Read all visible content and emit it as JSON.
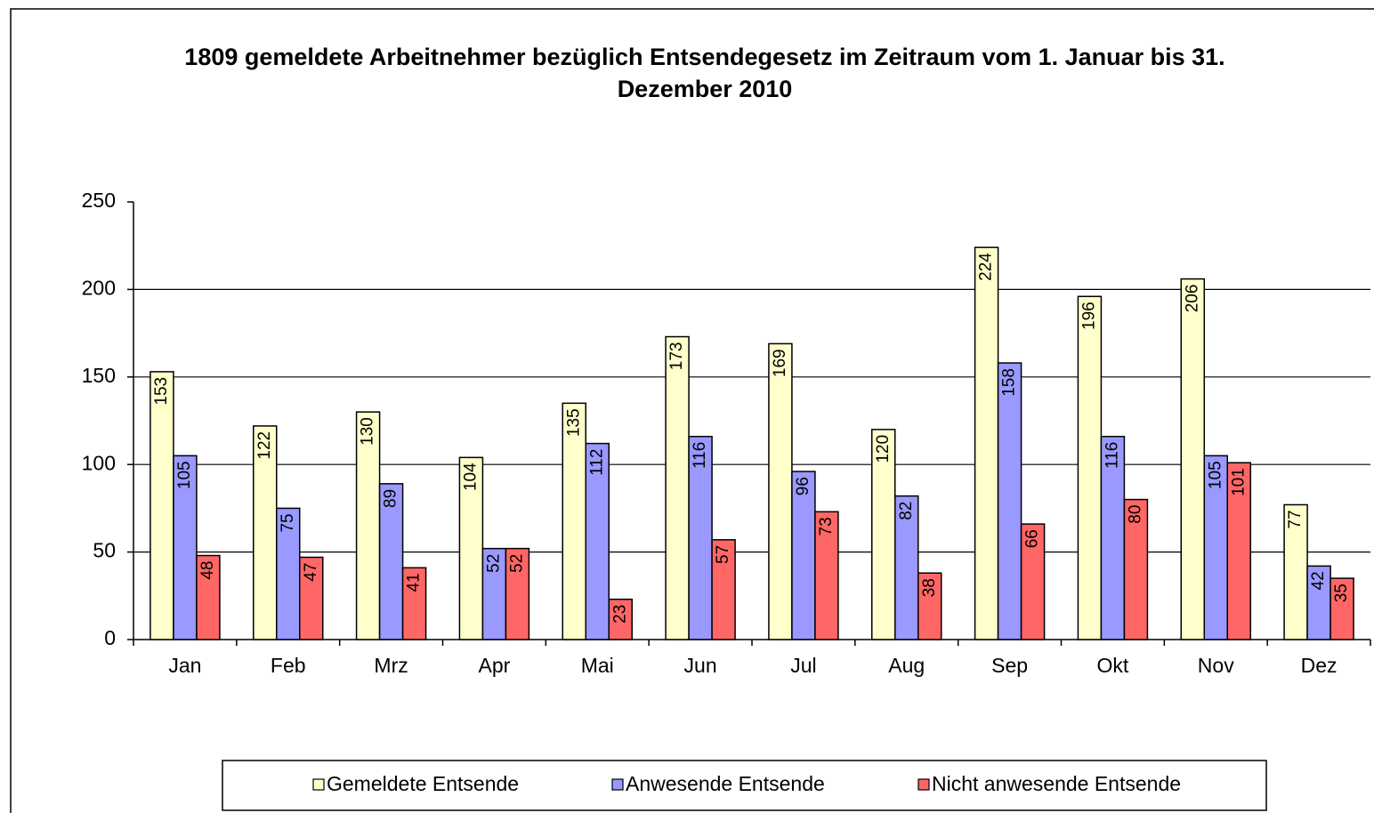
{
  "chart_data": {
    "type": "bar",
    "title": "1809 gemeldete Arbeitnehmer bezüglich Entsendegesetz im Zeitraum vom 1. Januar bis 31. Dezember 2010",
    "categories": [
      "Jan",
      "Feb",
      "Mrz",
      "Apr",
      "Mai",
      "Jun",
      "Jul",
      "Aug",
      "Sep",
      "Okt",
      "Nov",
      "Dez"
    ],
    "series": [
      {
        "name": "Gemeldete Entsende",
        "color": "#ffffcc",
        "values": [
          153,
          122,
          130,
          104,
          135,
          173,
          169,
          120,
          224,
          196,
          206,
          77
        ]
      },
      {
        "name": "Anwesende Entsende",
        "color": "#9999ff",
        "values": [
          105,
          75,
          89,
          52,
          112,
          116,
          96,
          82,
          158,
          116,
          105,
          42
        ]
      },
      {
        "name": "Nicht anwesende Entsende",
        "color": "#ff6666",
        "values": [
          48,
          47,
          41,
          52,
          23,
          57,
          73,
          38,
          66,
          80,
          101,
          35
        ]
      }
    ],
    "ylim": [
      0,
      250
    ],
    "yticks": [
      0,
      50,
      100,
      150,
      200,
      250
    ],
    "grid": true,
    "legend": "bottom"
  }
}
